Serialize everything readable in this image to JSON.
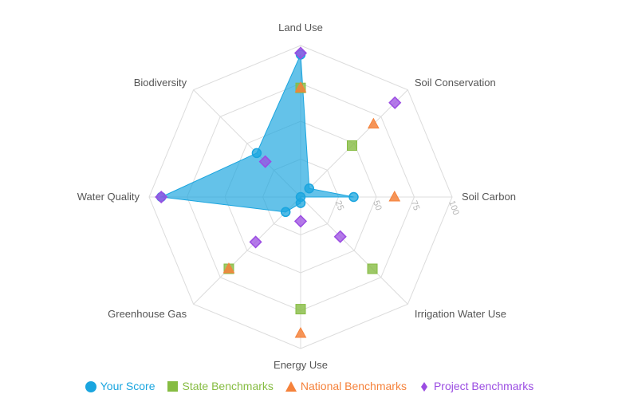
{
  "chart_data": {
    "type": "radar",
    "categories": [
      "Land Use",
      "Soil Conservation",
      "Soil Carbon",
      "Irrigation Water Use",
      "Energy Use",
      "Greenhouse Gas",
      "Water Quality",
      "Biodiversity"
    ],
    "ylim": [
      0,
      100
    ],
    "ticks": [
      "25",
      "50",
      "75",
      "100"
    ],
    "legend_position": "bottom",
    "series": [
      {
        "name": "Your Score",
        "marker": "circle",
        "color": "#1aa5df",
        "fill": true,
        "values": [
          94,
          8,
          35,
          0,
          4,
          14,
          92,
          41
        ]
      },
      {
        "name": "State Benchmarks",
        "marker": "square",
        "color": "#86bc42",
        "values": [
          72,
          48,
          null,
          67,
          74,
          67,
          null,
          null
        ]
      },
      {
        "name": "National Benchmarks",
        "marker": "triangle",
        "color": "#f5823b",
        "values": [
          72,
          68,
          62,
          null,
          90,
          67,
          null,
          null
        ]
      },
      {
        "name": "Project Benchmarks",
        "marker": "diamond",
        "color": "#9b4de2",
        "values": [
          95,
          88,
          null,
          37,
          16,
          42,
          92,
          33
        ]
      }
    ]
  }
}
